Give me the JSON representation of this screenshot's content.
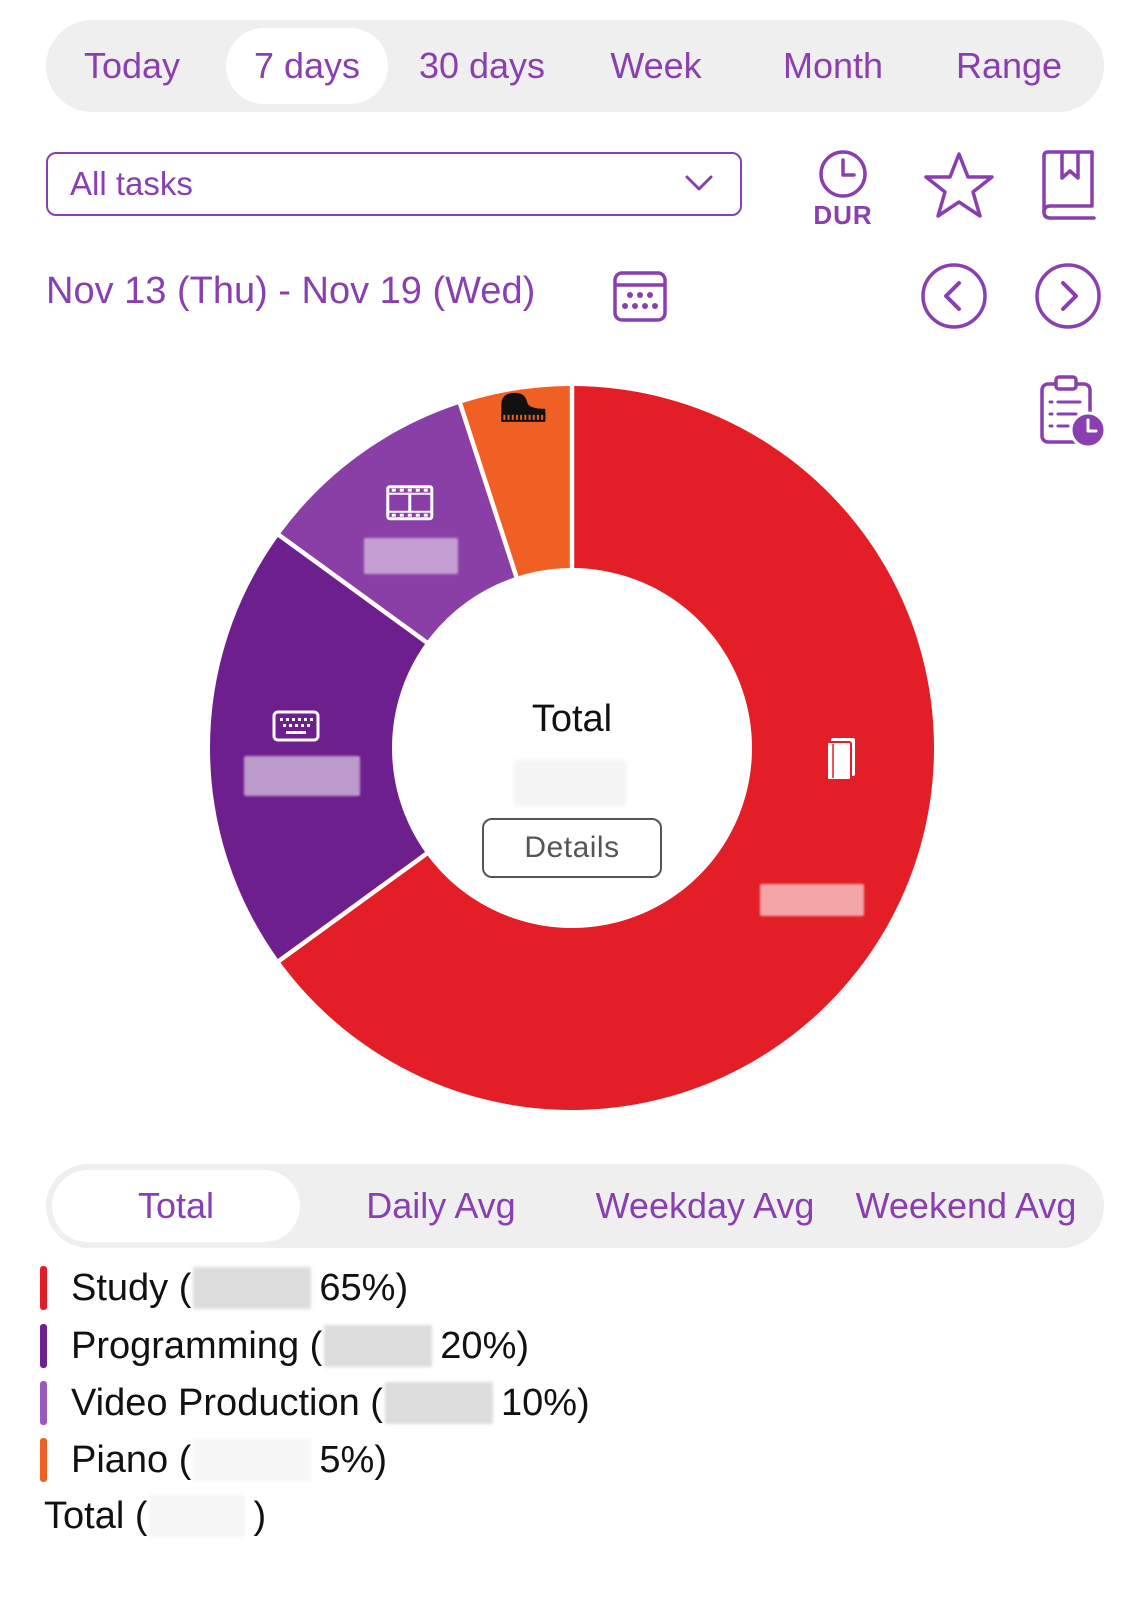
{
  "range_tabs": [
    {
      "label": "Today",
      "active": false
    },
    {
      "label": "7 days",
      "active": true
    },
    {
      "label": "30 days",
      "active": false
    },
    {
      "label": "Week",
      "active": false
    },
    {
      "label": "Month",
      "active": false
    },
    {
      "label": "Range",
      "active": false
    }
  ],
  "filter": {
    "value": "All tasks"
  },
  "toolbar": {
    "dur_label": "DUR"
  },
  "date_range": "Nov 13 (Thu) - Nov 19 (Wed)",
  "chart_center": {
    "title": "Total",
    "details_label": "Details"
  },
  "chart_data": {
    "type": "pie",
    "variant": "donut",
    "categories": [
      "Study",
      "Programming",
      "Video Production",
      "Piano"
    ],
    "values": [
      65,
      20,
      10,
      5
    ],
    "unit": "%",
    "colors": [
      "#e31e26",
      "#6d1f8e",
      "#8a3fa6",
      "#f05f24"
    ],
    "icons": [
      "book-icon",
      "keyboard-icon",
      "film-icon",
      "piano-icon"
    ],
    "start": "top, clockwise"
  },
  "stat_tabs": [
    {
      "label": "Total",
      "active": true
    },
    {
      "label": "Daily Avg",
      "active": false
    },
    {
      "label": "Weekday Avg",
      "active": false
    },
    {
      "label": "Weekend Avg",
      "active": false
    }
  ],
  "legend": {
    "items": [
      {
        "name_part": "Study (",
        "pct_part": "65%)",
        "color": "#e31e26"
      },
      {
        "name_part": "Programming (",
        "pct_part": "20%)",
        "color": "#6d1f8e"
      },
      {
        "name_part": "Video Production (",
        "pct_part": "10%)",
        "color": "#9b59c2"
      },
      {
        "name_part": "Piano (",
        "pct_part": "5%)",
        "color": "#f05f24"
      }
    ],
    "total_open": "Total (",
    "total_close": ")"
  }
}
